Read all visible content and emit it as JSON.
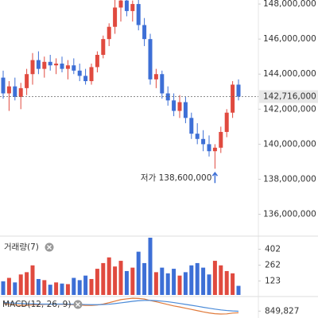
{
  "chart_data": [
    {
      "type": "candlestick",
      "ylim": [
        134800000,
        148230000
      ],
      "yticks": [
        {
          "value": 136000000,
          "label": "136,000,000"
        },
        {
          "value": 138000000,
          "label": "138,000,000"
        },
        {
          "value": 140000000,
          "label": "140,000,000"
        },
        {
          "value": 142000000,
          "label": "142,000,000"
        },
        {
          "value": 144000000,
          "label": "144,000,000"
        },
        {
          "value": 146000000,
          "label": "146,000,000"
        },
        {
          "value": 148000000,
          "label": "148,000,000"
        }
      ],
      "up_color": "#e04a3f",
      "down_color": "#3d6fd6",
      "current_price": {
        "value": 142716000,
        "label": "142,716,000"
      },
      "annotation": {
        "text": "저가 138,600,000",
        "value": 138600000,
        "index": 36
      },
      "open": [
        143800000,
        142900000,
        143300000,
        142700000,
        143200000,
        144000000,
        144800000,
        144300000,
        144700000,
        144500000,
        144600000,
        144300000,
        144500000,
        144200000,
        143900000,
        143600000,
        144400000,
        145100000,
        146000000,
        146700000,
        147800000,
        148200000,
        147600000,
        148000000,
        146800000,
        146000000,
        143700000,
        144000000,
        142900000,
        142500000,
        141900000,
        142400000,
        141500000,
        140600000,
        140300000,
        140000000,
        139600000,
        139800000,
        140700000,
        141800000,
        143400000
      ],
      "high": [
        144200000,
        143600000,
        143800000,
        143500000,
        144300000,
        145200000,
        145300000,
        145000000,
        145100000,
        144900000,
        145000000,
        144800000,
        144900000,
        144600000,
        144300000,
        144600000,
        145300000,
        146200000,
        146900000,
        148300000,
        148300000,
        148300000,
        148200000,
        148300000,
        147200000,
        146300000,
        144300000,
        144200000,
        143300000,
        142900000,
        142800000,
        142700000,
        141800000,
        141200000,
        140800000,
        140500000,
        140000000,
        141000000,
        142000000,
        143600000,
        143700000
      ],
      "low": [
        142600000,
        141900000,
        142500000,
        142000000,
        142800000,
        143400000,
        144000000,
        143800000,
        144200000,
        144000000,
        144100000,
        143700000,
        144000000,
        143600000,
        143400000,
        143400000,
        144100000,
        144900000,
        145600000,
        146300000,
        147000000,
        147300000,
        147000000,
        146500000,
        145600000,
        143400000,
        143200000,
        142600000,
        142200000,
        141600000,
        141500000,
        141200000,
        140300000,
        140000000,
        139600000,
        139300000,
        138600000,
        139500000,
        140400000,
        141500000,
        142500000
      ],
      "close": [
        142900000,
        143300000,
        142700000,
        143200000,
        144000000,
        144800000,
        144300000,
        144700000,
        144500000,
        144600000,
        144300000,
        144500000,
        144200000,
        143900000,
        143600000,
        144400000,
        145100000,
        146000000,
        146700000,
        147800000,
        148200000,
        147600000,
        148000000,
        146800000,
        146000000,
        143700000,
        144000000,
        142900000,
        142500000,
        141900000,
        142400000,
        141500000,
        140600000,
        140300000,
        140000000,
        139600000,
        139800000,
        140700000,
        141800000,
        143400000,
        142716000
      ]
    },
    {
      "type": "bar",
      "title": "거래량(7)",
      "ylim": [
        0,
        510
      ],
      "yticks": [
        123,
        262,
        402
      ],
      "values": [
        120,
        150,
        110,
        180,
        200,
        260,
        140,
        130,
        90,
        110,
        100,
        95,
        150,
        130,
        170,
        140,
        230,
        280,
        330,
        250,
        300,
        210,
        240,
        380,
        280,
        503,
        200,
        240,
        190,
        230,
        170,
        200,
        260,
        280,
        240,
        180,
        300,
        260,
        210,
        190,
        80
      ]
    },
    {
      "type": "line",
      "title": "MACD(12, 26, 9)",
      "ylim": [
        400000,
        1750000
      ],
      "yticks": [
        {
          "value": 849827,
          "label": "849,827"
        }
      ],
      "series": [
        {
          "color": "#e07a3a",
          "values": [
            1350000,
            1300000,
            1260000,
            1230000,
            1230000,
            1260000,
            1270000,
            1290000,
            1300000,
            1300000,
            1290000,
            1280000,
            1270000,
            1250000,
            1220000,
            1220000,
            1250000,
            1310000,
            1400000,
            1500000,
            1600000,
            1650000,
            1690000,
            1680000,
            1640000,
            1540000,
            1460000,
            1370000,
            1280000,
            1190000,
            1120000,
            1040000,
            960000,
            880000,
            800000,
            730000,
            680000,
            660000,
            670000,
            720000,
            740000
          ]
        },
        {
          "color": "#4b8bd8",
          "values": [
            1400000,
            1390000,
            1370000,
            1350000,
            1330000,
            1320000,
            1310000,
            1310000,
            1310000,
            1310000,
            1310000,
            1300000,
            1300000,
            1290000,
            1280000,
            1270000,
            1270000,
            1280000,
            1300000,
            1340000,
            1390000,
            1440000,
            1490000,
            1530000,
            1550000,
            1550000,
            1530000,
            1500000,
            1460000,
            1410000,
            1350000,
            1290000,
            1230000,
            1170000,
            1100000,
            1040000,
            980000,
            930000,
            890000,
            860000,
            840000
          ]
        }
      ]
    }
  ]
}
